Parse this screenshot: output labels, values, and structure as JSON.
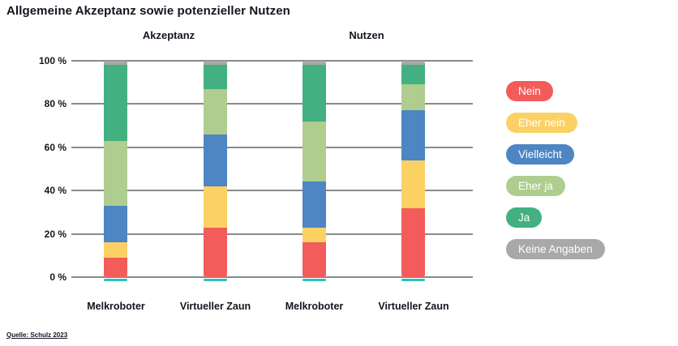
{
  "chart_data": {
    "type": "bar",
    "stacked": true,
    "percent_scale": true,
    "title": "Allgemeine Akzeptanz sowie potenzieller Nutzen",
    "groups": [
      {
        "label": "Akzeptanz"
      },
      {
        "label": "Nutzen"
      }
    ],
    "categories": [
      "Melkroboter",
      "Virtueller Zaun",
      "Melkroboter",
      "Virtueller Zaun"
    ],
    "series": [
      {
        "name": "Nein",
        "color": "#f25c5a",
        "values": [
          9,
          23,
          16,
          32
        ]
      },
      {
        "name": "Eher nein",
        "color": "#fbd164",
        "values": [
          7,
          19,
          7,
          22
        ]
      },
      {
        "name": "Vielleicht",
        "color": "#4d86c3",
        "values": [
          17,
          24,
          21,
          23
        ]
      },
      {
        "name": "Eher ja",
        "color": "#aecd8e",
        "values": [
          30,
          21,
          28,
          12
        ]
      },
      {
        "name": "Ja",
        "color": "#43b081",
        "values": [
          35,
          11,
          26,
          9
        ]
      },
      {
        "name": "Keine Angaben",
        "color": "#a8a8a8",
        "values": [
          2,
          2,
          2,
          2
        ]
      }
    ],
    "y_ticks": [
      "100 %",
      "80 %",
      "60 %",
      "40 %",
      "20 %",
      "0 %"
    ],
    "ylim": [
      0,
      100
    ],
    "grid": true,
    "legend_position": "right"
  },
  "colors": {
    "gridline": "#8a8a8a",
    "bar_baseline": "#2dc0ba",
    "text": "#15151f",
    "background": "#ffffff"
  },
  "footer": {
    "source": "Quelle: Schulz 2023"
  }
}
